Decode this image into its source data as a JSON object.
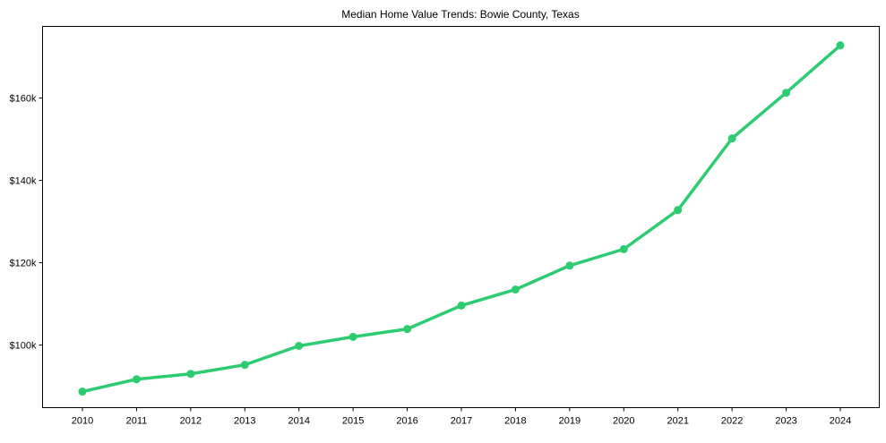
{
  "chart_data": {
    "type": "line",
    "title": "Median Home Value Trends: Bowie County, Texas",
    "xlabel": "",
    "ylabel": "",
    "categories": [
      "2010",
      "2011",
      "2012",
      "2013",
      "2014",
      "2015",
      "2016",
      "2017",
      "2018",
      "2019",
      "2020",
      "2021",
      "2022",
      "2023",
      "2024"
    ],
    "series": [
      {
        "name": "Median Home Value",
        "color": "#2ecc71",
        "values": [
          88700,
          91700,
          93000,
          95200,
          99800,
          102000,
          103900,
          109600,
          113500,
          119300,
          123300,
          132800,
          150200,
          161300,
          172800
        ]
      }
    ],
    "yticks": [
      100000,
      120000,
      140000,
      160000
    ],
    "ytick_labels": [
      "$100k",
      "$120k",
      "$140k",
      "$160k"
    ],
    "ylim": [
      84800,
      177400
    ],
    "grid": false,
    "legend": "none"
  }
}
